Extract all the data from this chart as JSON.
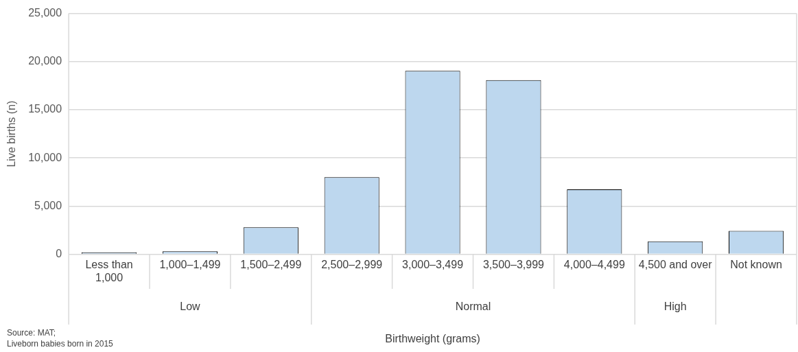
{
  "chart_data": {
    "type": "bar",
    "xlabel": "Birthweight (grams)",
    "ylabel": "Live births (n)",
    "categories": [
      "Less than 1,000",
      "1,000–1,499",
      "1,500–2,499",
      "2,500–2,999",
      "3,000–3,499",
      "3,500–3,999",
      "4,000–4,499",
      "4,500 and over",
      "Not known"
    ],
    "values": [
      200,
      310,
      2810,
      8000,
      19040,
      18080,
      6730,
      1340,
      2430
    ],
    "color": "#bdd7ee",
    "ylim": [
      0,
      25000
    ],
    "yticks": [
      0,
      {
        "value": 5000,
        "label": "5,000"
      },
      {
        "value": 10000,
        "label": "10,000"
      },
      {
        "value": 15000,
        "label": "15,000"
      },
      {
        "value": 20000,
        "label": "20,000"
      },
      {
        "value": 25000,
        "label": "25,000"
      }
    ],
    "grid": "y",
    "legend": false,
    "annotations": [
      "Low",
      "Normal",
      "High",
      "Source: MAT;",
      "Liveborn babies born in 2015"
    ]
  }
}
